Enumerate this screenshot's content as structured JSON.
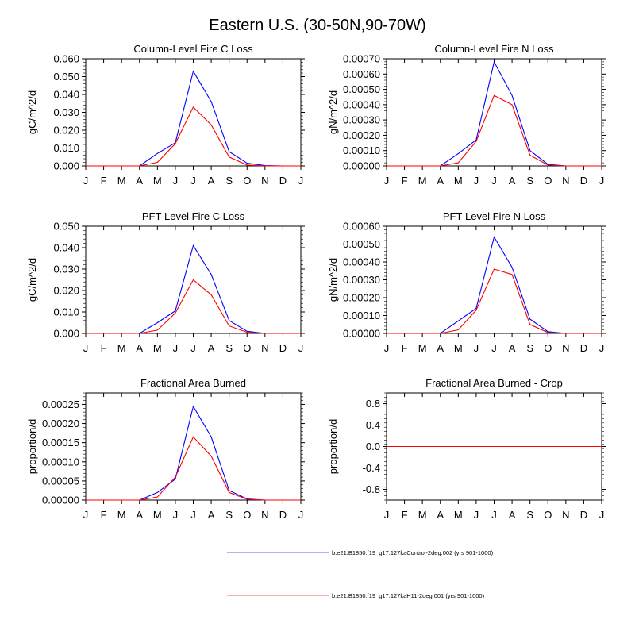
{
  "title": "Eastern U.S. (30-50N,90-70W)",
  "legend": [
    {
      "label": "b.e21.B1850.f19_g17.127kaControl-2deg.002 (yrs 901-1000)",
      "color": "#0000ff"
    },
    {
      "label": "b.e21.B1850.f19_g17.127kaH11-2deg.001 (yrs 901-1000)",
      "color": "#ff0000"
    }
  ],
  "chart_data": [
    {
      "type": "line",
      "title": "Column-Level Fire C Loss",
      "ylabel": "gC/m^2/d",
      "xlabel": "",
      "categories": [
        "J",
        "F",
        "M",
        "A",
        "M",
        "J",
        "J",
        "A",
        "S",
        "O",
        "N",
        "D",
        "J"
      ],
      "ylim": [
        0,
        0.06
      ],
      "yticks": [
        "0.000",
        "0.010",
        "0.020",
        "0.030",
        "0.040",
        "0.050",
        "0.060"
      ],
      "ytick_values": [
        0,
        0.01,
        0.02,
        0.03,
        0.04,
        0.05,
        0.06
      ],
      "series": [
        {
          "name": "b.e21.B1850.f19_g17.127kaControl-2deg.002 (yrs 901-1000)",
          "color": "#0000ff",
          "values": [
            0,
            0,
            0,
            0,
            0.007,
            0.013,
            0.053,
            0.036,
            0.008,
            0.0015,
            0.0002,
            0,
            0
          ]
        },
        {
          "name": "b.e21.B1850.f19_g17.127kaH11-2deg.001 (yrs 901-1000)",
          "color": "#ff0000",
          "values": [
            0,
            0,
            0,
            0,
            0.002,
            0.0125,
            0.033,
            0.023,
            0.005,
            0.0005,
            0,
            0,
            0
          ]
        }
      ]
    },
    {
      "type": "line",
      "title": "Column-Level Fire N Loss",
      "ylabel": "gN/m^2/d",
      "xlabel": "",
      "categories": [
        "J",
        "F",
        "M",
        "A",
        "M",
        "J",
        "J",
        "A",
        "S",
        "O",
        "N",
        "D",
        "J"
      ],
      "ylim": [
        0,
        0.0007
      ],
      "yticks": [
        "0.00000",
        "0.00010",
        "0.00020",
        "0.00030",
        "0.00040",
        "0.00050",
        "0.00060",
        "0.00070"
      ],
      "ytick_values": [
        0,
        0.0001,
        0.0002,
        0.0003,
        0.0004,
        0.0005,
        0.0006,
        0.0007
      ],
      "series": [
        {
          "name": "b.e21.B1850.f19_g17.127kaControl-2deg.002 (yrs 901-1000)",
          "color": "#0000ff",
          "values": [
            0,
            0,
            0,
            0,
            8e-05,
            0.00017,
            0.00068,
            0.00046,
            0.0001,
            1e-05,
            0,
            0,
            0
          ]
        },
        {
          "name": "b.e21.B1850.f19_g17.127kaH11-2deg.001 (yrs 901-1000)",
          "color": "#ff0000",
          "values": [
            0,
            0,
            0,
            0,
            2e-05,
            0.00016,
            0.00046,
            0.0004,
            7e-05,
            5e-06,
            0,
            0,
            0
          ]
        }
      ]
    },
    {
      "type": "line",
      "title": "PFT-Level Fire C Loss",
      "ylabel": "gC/m^2/d",
      "xlabel": "",
      "categories": [
        "J",
        "F",
        "M",
        "A",
        "M",
        "J",
        "J",
        "A",
        "S",
        "O",
        "N",
        "D",
        "J"
      ],
      "ylim": [
        0,
        0.05
      ],
      "yticks": [
        "0.000",
        "0.010",
        "0.020",
        "0.030",
        "0.040",
        "0.050"
      ],
      "ytick_values": [
        0,
        0.01,
        0.02,
        0.03,
        0.04,
        0.05
      ],
      "series": [
        {
          "name": "b.e21.B1850.f19_g17.127kaControl-2deg.002 (yrs 901-1000)",
          "color": "#0000ff",
          "values": [
            0,
            0,
            0,
            0,
            0.005,
            0.0105,
            0.041,
            0.0275,
            0.006,
            0.001,
            0,
            0,
            0
          ]
        },
        {
          "name": "b.e21.B1850.f19_g17.127kaH11-2deg.001 (yrs 901-1000)",
          "color": "#ff0000",
          "values": [
            0,
            0,
            0,
            0,
            0.0015,
            0.0095,
            0.025,
            0.018,
            0.0035,
            0.0005,
            0,
            0,
            0
          ]
        }
      ]
    },
    {
      "type": "line",
      "title": "PFT-Level Fire N Loss",
      "ylabel": "gN/m^2/d",
      "xlabel": "",
      "categories": [
        "J",
        "F",
        "M",
        "A",
        "M",
        "J",
        "J",
        "A",
        "S",
        "O",
        "N",
        "D",
        "J"
      ],
      "ylim": [
        0,
        0.0006
      ],
      "yticks": [
        "0.00000",
        "0.00010",
        "0.00020",
        "0.00030",
        "0.00040",
        "0.00050",
        "0.00060"
      ],
      "ytick_values": [
        0,
        0.0001,
        0.0002,
        0.0003,
        0.0004,
        0.0005,
        0.0006
      ],
      "series": [
        {
          "name": "b.e21.B1850.f19_g17.127kaControl-2deg.002 (yrs 901-1000)",
          "color": "#0000ff",
          "values": [
            0,
            0,
            0,
            0,
            7e-05,
            0.00014,
            0.00054,
            0.00037,
            8e-05,
            1e-05,
            0,
            0,
            0
          ]
        },
        {
          "name": "b.e21.B1850.f19_g17.127kaH11-2deg.001 (yrs 901-1000)",
          "color": "#ff0000",
          "values": [
            0,
            0,
            0,
            0,
            2e-05,
            0.00013,
            0.00036,
            0.00033,
            5e-05,
            5e-06,
            0,
            0,
            0
          ]
        }
      ]
    },
    {
      "type": "line",
      "title": "Fractional Area Burned",
      "ylabel": "proportion/d",
      "xlabel": "",
      "categories": [
        "J",
        "F",
        "M",
        "A",
        "M",
        "J",
        "J",
        "A",
        "S",
        "O",
        "N",
        "D",
        "J"
      ],
      "ylim": [
        0,
        0.00028
      ],
      "yticks": [
        "0.00000",
        "0.00005",
        "0.00010",
        "0.00015",
        "0.00020",
        "0.00025"
      ],
      "ytick_values": [
        0,
        5e-05,
        0.0001,
        0.00015,
        0.0002,
        0.00025
      ],
      "series": [
        {
          "name": "b.e21.B1850.f19_g17.127kaControl-2deg.002 (yrs 901-1000)",
          "color": "#0000ff",
          "values": [
            0,
            0,
            0,
            0,
            2e-05,
            5.5e-05,
            0.000245,
            0.000165,
            2.5e-05,
            3e-06,
            0,
            0,
            0
          ]
        },
        {
          "name": "b.e21.B1850.f19_g17.127kaH11-2deg.001 (yrs 901-1000)",
          "color": "#ff0000",
          "values": [
            0,
            0,
            0,
            0,
            8e-06,
            6e-05,
            0.000165,
            0.000115,
            2e-05,
            2e-06,
            0,
            0,
            0
          ]
        }
      ]
    },
    {
      "type": "line",
      "title": "Fractional Area Burned - Crop",
      "ylabel": "proportion/d",
      "xlabel": "",
      "categories": [
        "J",
        "F",
        "M",
        "A",
        "M",
        "J",
        "J",
        "A",
        "S",
        "O",
        "N",
        "D",
        "J"
      ],
      "ylim": [
        -1,
        1
      ],
      "yticks": [
        "-0.8",
        "-0.4",
        "0.0",
        "0.4",
        "0.8"
      ],
      "ytick_values": [
        -0.8,
        -0.4,
        0,
        0.4,
        0.8
      ],
      "series": [
        {
          "name": "b.e21.B1850.f19_g17.127kaControl-2deg.002 (yrs 901-1000)",
          "color": "#0000ff",
          "values": [
            0,
            0,
            0,
            0,
            0,
            0,
            0,
            0,
            0,
            0,
            0,
            0,
            0
          ]
        },
        {
          "name": "b.e21.B1850.f19_g17.127kaH11-2deg.001 (yrs 901-1000)",
          "color": "#ff0000",
          "values": [
            0,
            0,
            0,
            0,
            0,
            0,
            0,
            0,
            0,
            0,
            0,
            0,
            0
          ]
        }
      ]
    }
  ]
}
